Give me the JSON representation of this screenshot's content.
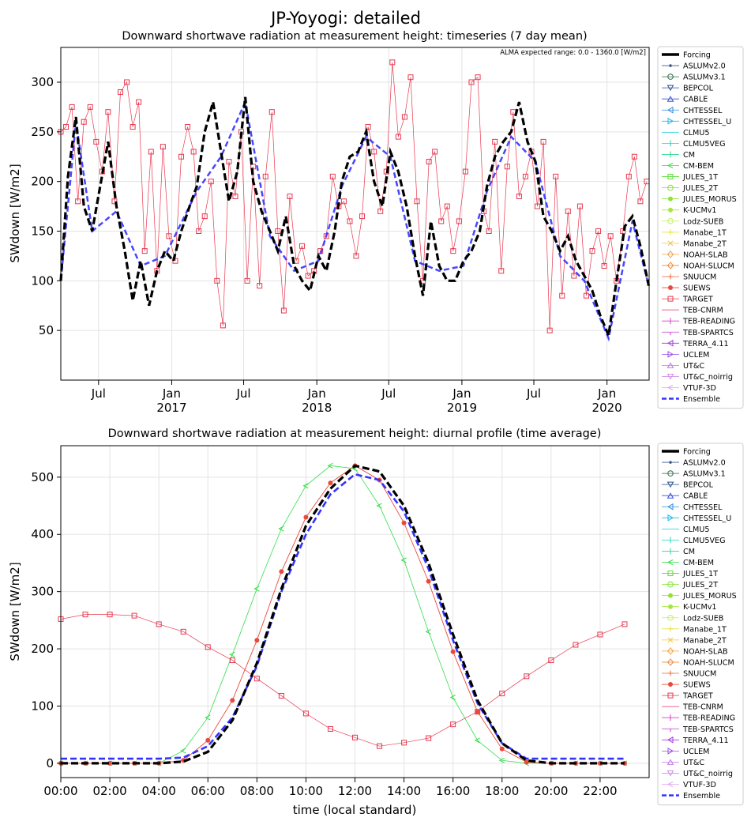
{
  "suptitle": "JP-Yoyogi: detailed",
  "legend_entries": [
    {
      "name": "Forcing",
      "color": "#000000",
      "marker": "none",
      "style": "thick"
    },
    {
      "name": "ASLUMv2.0",
      "color": "#3c5a8c",
      "marker": "dot"
    },
    {
      "name": "ASLUMv3.1",
      "color": "#2e6b46",
      "marker": "circle"
    },
    {
      "name": "BEPCOL",
      "color": "#2a4f8f",
      "marker": "tri-down"
    },
    {
      "name": "CABLE",
      "color": "#3b50d6",
      "marker": "tri-up"
    },
    {
      "name": "CHTESSEL",
      "color": "#2d8fe0",
      "marker": "tri-left"
    },
    {
      "name": "CHTESSEL_U",
      "color": "#23b6e8",
      "marker": "tri-right"
    },
    {
      "name": "CLMU5",
      "color": "#19c9d8",
      "marker": "hline"
    },
    {
      "name": "CLMU5VEG",
      "color": "#22d5b8",
      "marker": "vline"
    },
    {
      "name": "CM",
      "color": "#2bd98e",
      "marker": "tick-down"
    },
    {
      "name": "CM-BEM",
      "color": "#33dd4a",
      "marker": "caret-left"
    },
    {
      "name": "JULES_1T",
      "color": "#55dd33",
      "marker": "square"
    },
    {
      "name": "JULES_2T",
      "color": "#7fe033",
      "marker": "hexagon"
    },
    {
      "name": "JULES_MORUS",
      "color": "#8ee433",
      "marker": "star"
    },
    {
      "name": "K-UCMv1",
      "color": "#a6e640",
      "marker": "cross-fill"
    },
    {
      "name": "Lodz-SUEB",
      "color": "#c6ec62",
      "marker": "octagon"
    },
    {
      "name": "Manabe_1T",
      "color": "#e4e244",
      "marker": "plus"
    },
    {
      "name": "Manabe_2T",
      "color": "#f2c640",
      "marker": "x"
    },
    {
      "name": "NOAH-SLAB",
      "color": "#f2a440",
      "marker": "diamond"
    },
    {
      "name": "NOAH-SLUCM",
      "color": "#ef8a3c",
      "marker": "thin-diamond"
    },
    {
      "name": "SNUUCM",
      "color": "#eb6a36",
      "marker": "plus-thin"
    },
    {
      "name": "SUEWS",
      "color": "#e84a3a",
      "marker": "pentagon"
    },
    {
      "name": "TARGET",
      "color": "#e8384f",
      "marker": "x-square"
    },
    {
      "name": "TEB-CNRM",
      "color": "#e0306e",
      "marker": "hline"
    },
    {
      "name": "TEB-READING",
      "color": "#d93ac4",
      "marker": "vline"
    },
    {
      "name": "TEB-SPARTCS",
      "color": "#c43ad0",
      "marker": "tick"
    },
    {
      "name": "TERRA_4.11",
      "color": "#a63ae0",
      "marker": "tri-left"
    },
    {
      "name": "UCLEM",
      "color": "#9a52e6",
      "marker": "tri-right"
    },
    {
      "name": "UT&C",
      "color": "#c07ae6",
      "marker": "tri-up"
    },
    {
      "name": "UT&C_noirrig",
      "color": "#d28ee4",
      "marker": "tri-down"
    },
    {
      "name": "VTUF-3D",
      "color": "#e2a6ea",
      "marker": "caret-left"
    },
    {
      "name": "Ensemble",
      "color": "#3333ff",
      "marker": "none",
      "style": "dashed"
    }
  ],
  "chart_data": [
    {
      "type": "line",
      "title": "Downward shortwave radiation at measurement height: timeseries (7 day mean)",
      "annotation": "ALMA expected range: 0.0 - 1360.0 [W/m2]",
      "xlabel": "",
      "ylabel": "SWdown [W/m2]",
      "x_axis": "date",
      "xlim": [
        "2016-03-28",
        "2020-04-16"
      ],
      "ylim": [
        0,
        335
      ],
      "yticks": [
        50,
        100,
        150,
        200,
        250,
        300
      ],
      "xticks": [
        {
          "date": "2016-07-01",
          "label": "Jul",
          "year": ""
        },
        {
          "date": "2017-01-01",
          "label": "Jan",
          "year": "2017"
        },
        {
          "date": "2017-07-01",
          "label": "Jul",
          "year": ""
        },
        {
          "date": "2018-01-01",
          "label": "Jan",
          "year": "2018"
        },
        {
          "date": "2018-07-01",
          "label": "Jul",
          "year": ""
        },
        {
          "date": "2019-01-01",
          "label": "Jan",
          "year": "2019"
        },
        {
          "date": "2019-07-01",
          "label": "Jul",
          "year": ""
        },
        {
          "date": "2020-01-01",
          "label": "Jan",
          "year": "2020"
        }
      ],
      "grid": true,
      "legend": "outside-right",
      "series": [
        {
          "name": "Forcing",
          "style": "black-thick-dashed",
          "x": [
            "2016-03-28",
            "2016-04-15",
            "2016-05-05",
            "2016-05-25",
            "2016-06-15",
            "2016-07-05",
            "2016-07-25",
            "2016-08-15",
            "2016-09-05",
            "2016-09-25",
            "2016-10-15",
            "2016-11-05",
            "2016-11-25",
            "2016-12-15",
            "2017-01-05",
            "2017-01-25",
            "2017-02-15",
            "2017-03-05",
            "2017-03-25",
            "2017-04-15",
            "2017-05-05",
            "2017-05-25",
            "2017-06-15",
            "2017-07-05",
            "2017-07-25",
            "2017-08-15",
            "2017-09-05",
            "2017-09-25",
            "2017-10-15",
            "2017-11-05",
            "2017-11-25",
            "2017-12-15",
            "2018-01-05",
            "2018-01-25",
            "2018-02-15",
            "2018-03-05",
            "2018-03-25",
            "2018-04-15",
            "2018-05-05",
            "2018-05-25",
            "2018-06-15",
            "2018-07-05",
            "2018-07-25",
            "2018-08-15",
            "2018-09-05",
            "2018-09-25",
            "2018-10-15",
            "2018-11-05",
            "2018-11-25",
            "2018-12-15",
            "2019-01-05",
            "2019-01-25",
            "2019-02-15",
            "2019-03-05",
            "2019-03-25",
            "2019-04-15",
            "2019-05-05",
            "2019-05-25",
            "2019-06-15",
            "2019-07-05",
            "2019-07-25",
            "2019-08-15",
            "2019-09-05",
            "2019-09-25",
            "2019-10-15",
            "2019-11-05",
            "2019-11-25",
            "2019-12-15",
            "2020-01-05",
            "2020-01-25",
            "2020-02-15",
            "2020-03-05",
            "2020-03-25",
            "2020-04-15"
          ],
          "y": [
            100,
            205,
            265,
            175,
            150,
            195,
            240,
            175,
            130,
            80,
            120,
            75,
            110,
            130,
            120,
            150,
            175,
            195,
            250,
            280,
            230,
            180,
            210,
            285,
            200,
            170,
            150,
            130,
            165,
            115,
            100,
            90,
            125,
            110,
            150,
            200,
            225,
            230,
            250,
            200,
            175,
            230,
            210,
            175,
            125,
            85,
            160,
            115,
            100,
            100,
            120,
            130,
            150,
            195,
            225,
            240,
            250,
            280,
            240,
            220,
            165,
            150,
            130,
            145,
            120,
            105,
            90,
            65,
            45,
            100,
            155,
            165,
            135,
            95
          ]
        },
        {
          "name": "Ensemble",
          "style": "blue-dashed",
          "x": [
            "2016-03-28",
            "2016-05-05",
            "2016-06-15",
            "2016-08-15",
            "2016-10-15",
            "2016-12-15",
            "2017-03-05",
            "2017-05-05",
            "2017-07-05",
            "2017-09-05",
            "2017-11-05",
            "2018-01-05",
            "2018-03-05",
            "2018-05-05",
            "2018-07-05",
            "2018-09-05",
            "2018-11-05",
            "2019-01-05",
            "2019-03-05",
            "2019-05-05",
            "2019-07-05",
            "2019-09-05",
            "2019-11-05",
            "2020-01-05",
            "2020-03-05",
            "2020-04-15"
          ],
          "y": [
            100,
            260,
            150,
            170,
            115,
            125,
            190,
            225,
            280,
            145,
            110,
            120,
            195,
            245,
            225,
            120,
            110,
            115,
            190,
            245,
            220,
            125,
            100,
            42,
            160,
            95
          ]
        },
        {
          "name": "TARGET",
          "style": "red-thin-markers",
          "x": [
            "2016-03-28",
            "2016-04-10",
            "2016-04-25",
            "2016-05-10",
            "2016-05-25",
            "2016-06-10",
            "2016-06-25",
            "2016-07-10",
            "2016-07-25",
            "2016-08-10",
            "2016-08-25",
            "2016-09-10",
            "2016-09-25",
            "2016-10-10",
            "2016-10-25",
            "2016-11-10",
            "2016-11-25",
            "2016-12-10",
            "2016-12-25",
            "2017-01-10",
            "2017-01-25",
            "2017-02-10",
            "2017-02-25",
            "2017-03-10",
            "2017-03-25",
            "2017-04-10",
            "2017-04-25",
            "2017-05-10",
            "2017-05-25",
            "2017-06-10",
            "2017-06-25",
            "2017-07-10",
            "2017-07-25",
            "2017-08-10",
            "2017-08-25",
            "2017-09-10",
            "2017-09-25",
            "2017-10-10",
            "2017-10-25",
            "2017-11-10",
            "2017-11-25",
            "2017-12-10",
            "2017-12-25",
            "2018-01-10",
            "2018-01-25",
            "2018-02-10",
            "2018-02-25",
            "2018-03-10",
            "2018-03-25",
            "2018-04-10",
            "2018-04-25",
            "2018-05-10",
            "2018-05-25",
            "2018-06-10",
            "2018-06-25",
            "2018-07-10",
            "2018-07-25",
            "2018-08-10",
            "2018-08-25",
            "2018-09-10",
            "2018-09-25",
            "2018-10-10",
            "2018-10-25",
            "2018-11-10",
            "2018-11-25",
            "2018-12-10",
            "2018-12-25",
            "2019-01-10",
            "2019-01-25",
            "2019-02-10",
            "2019-02-25",
            "2019-03-10",
            "2019-03-25",
            "2019-04-10",
            "2019-04-25",
            "2019-05-10",
            "2019-05-25",
            "2019-06-10",
            "2019-06-25",
            "2019-07-10",
            "2019-07-25",
            "2019-08-10",
            "2019-08-25",
            "2019-09-10",
            "2019-09-25",
            "2019-10-10",
            "2019-10-25",
            "2019-11-10",
            "2019-11-25",
            "2019-12-10",
            "2019-12-25",
            "2020-01-10",
            "2020-01-25",
            "2020-02-10",
            "2020-02-25",
            "2020-03-10",
            "2020-03-25",
            "2020-04-10"
          ],
          "y": [
            250,
            255,
            275,
            180,
            260,
            275,
            240,
            210,
            270,
            180,
            290,
            300,
            255,
            280,
            130,
            230,
            110,
            235,
            145,
            120,
            225,
            255,
            230,
            150,
            165,
            200,
            100,
            55,
            220,
            185,
            250,
            100,
            215,
            95,
            205,
            270,
            150,
            70,
            185,
            120,
            135,
            105,
            110,
            130,
            145,
            205,
            175,
            180,
            160,
            125,
            165,
            255,
            230,
            170,
            210,
            320,
            245,
            265,
            305,
            180,
            100,
            220,
            230,
            160,
            175,
            130,
            160,
            210,
            300,
            305,
            170,
            150,
            240,
            110,
            215,
            270,
            185,
            205,
            230,
            175,
            240,
            50,
            205,
            85,
            170,
            105,
            175,
            85,
            130,
            150,
            115,
            145,
            100,
            150,
            205,
            225,
            180,
            200
          ]
        }
      ]
    },
    {
      "type": "line",
      "title": "Downward shortwave radiation at measurement height: diurnal profile (time average)",
      "xlabel": "time (local standard)",
      "ylabel": "SWdown [W/m2]",
      "xlim": [
        0,
        24
      ],
      "ylim": [
        -25,
        555
      ],
      "yticks": [
        0,
        100,
        200,
        300,
        400,
        500
      ],
      "xticks": [
        "00:00",
        "02:00",
        "04:00",
        "06:00",
        "08:00",
        "10:00",
        "12:00",
        "14:00",
        "16:00",
        "18:00",
        "20:00",
        "22:00"
      ],
      "grid": true,
      "legend": "outside-right",
      "x": [
        0,
        1,
        2,
        3,
        4,
        5,
        6,
        7,
        8,
        9,
        10,
        11,
        12,
        13,
        14,
        15,
        16,
        17,
        18,
        19,
        20,
        21,
        22,
        23
      ],
      "series": [
        {
          "name": "Forcing",
          "y": [
            0,
            0,
            0,
            0,
            0,
            3,
            20,
            75,
            175,
            305,
            415,
            480,
            520,
            510,
            450,
            350,
            225,
            110,
            35,
            5,
            0,
            0,
            0,
            0
          ]
        },
        {
          "name": "Ensemble",
          "y": [
            8,
            8,
            8,
            8,
            8,
            10,
            30,
            80,
            170,
            300,
            400,
            470,
            505,
            495,
            440,
            340,
            215,
            105,
            35,
            8,
            8,
            8,
            8,
            8
          ]
        },
        {
          "name": "CM-BEM",
          "y": [
            0,
            0,
            0,
            0,
            0,
            22,
            80,
            190,
            305,
            410,
            485,
            520,
            515,
            450,
            355,
            230,
            115,
            40,
            5,
            0,
            0,
            0,
            0,
            0
          ]
        },
        {
          "name": "TARGET",
          "y": [
            252,
            260,
            260,
            258,
            243,
            230,
            203,
            180,
            148,
            118,
            87,
            60,
            45,
            30,
            36,
            44,
            68,
            90,
            122,
            152,
            180,
            207,
            225,
            243
          ]
        },
        {
          "name": "SUEWS",
          "y": [
            0,
            0,
            0,
            0,
            0,
            5,
            40,
            110,
            215,
            335,
            430,
            490,
            520,
            495,
            420,
            318,
            195,
            90,
            25,
            2,
            0,
            0,
            0,
            0
          ]
        }
      ]
    }
  ]
}
